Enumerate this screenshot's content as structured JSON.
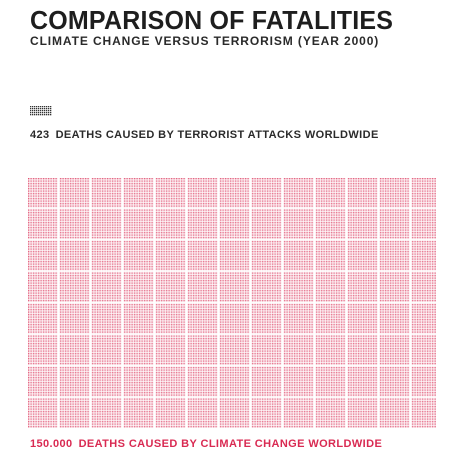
{
  "header": {
    "title": "COMPARISON OF FATALITIES",
    "subtitle": "CLIMATE CHANGE VERSUS TERRORISM (YEAR 2000)"
  },
  "terrorism": {
    "count": "423",
    "label": "DEATHS CAUSED BY TERRORIST ATTACKS WORLDWIDE"
  },
  "climate": {
    "count": "150.000",
    "label": "DEATHS CAUSED BY CLIMATE CHANGE WORLDWIDE"
  },
  "colors": {
    "terrorism": "#333333",
    "climate": "#d92a52",
    "text": "#1e1e1e"
  },
  "chart_data": {
    "type": "table",
    "title": "COMPARISON OF FATALITIES",
    "subtitle": "CLIMATE CHANGE VERSUS TERRORISM (YEAR 2000)",
    "categories": [
      "DEATHS CAUSED BY TERRORIST ATTACKS WORLDWIDE",
      "DEATHS CAUSED BY CLIMATE CHANGE WORLDWIDE"
    ],
    "values": [
      423,
      150000
    ],
    "value_labels": [
      "423",
      "150.000"
    ],
    "encoding": "dot-count"
  }
}
